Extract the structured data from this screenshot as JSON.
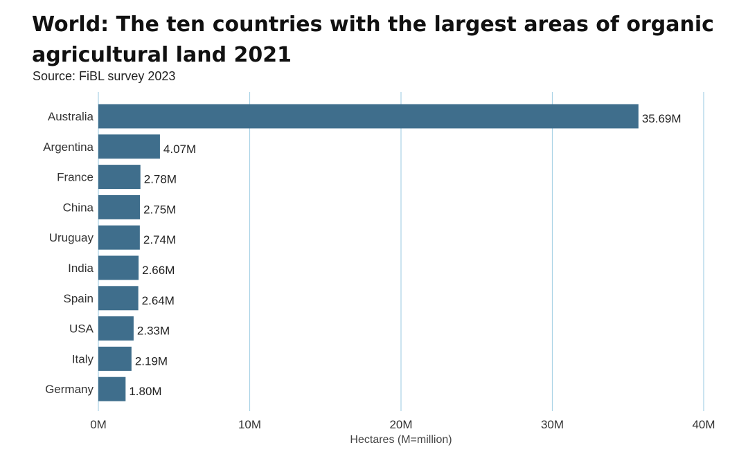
{
  "chart_data": {
    "type": "bar",
    "orientation": "horizontal",
    "title": "World: The ten countries with the largest areas of organic agricultural land 2021",
    "subtitle": "Source: FiBL survey 2023",
    "xlabel": "Hectares (M=million)",
    "ylabel": "",
    "xlim": [
      0,
      40
    ],
    "xticks": [
      0,
      10,
      20,
      30,
      40
    ],
    "xtick_labels": [
      "0M",
      "10M",
      "20M",
      "30M",
      "40M"
    ],
    "grid": true,
    "categories": [
      "Australia",
      "Argentina",
      "France",
      "China",
      "Uruguay",
      "India",
      "Spain",
      "USA",
      "Italy",
      "Germany"
    ],
    "values": [
      35.69,
      4.07,
      2.78,
      2.75,
      2.74,
      2.66,
      2.64,
      2.33,
      2.19,
      1.8
    ],
    "value_labels": [
      "35.69M",
      "4.07M",
      "2.78M",
      "2.75M",
      "2.74M",
      "2.66M",
      "2.64M",
      "2.33M",
      "2.19M",
      "1.80M"
    ],
    "bar_color": "#3f6e8c",
    "grid_color": "#a9d3e6"
  }
}
